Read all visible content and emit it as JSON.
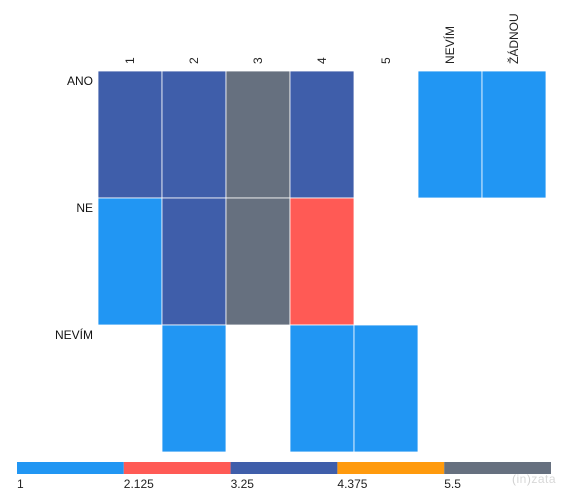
{
  "chart_data": {
    "type": "heatmap",
    "columns": [
      "1",
      "2",
      "3",
      "4",
      "5",
      "NEVÍM",
      "ŽÁDNOU"
    ],
    "rows": [
      "ANO",
      "NE",
      "NEVÍM"
    ],
    "cells": [
      [
        3.25,
        3.25,
        5.5,
        3.25,
        null,
        1,
        1
      ],
      [
        1,
        3.25,
        5.5,
        2.125,
        null,
        null,
        null
      ],
      [
        null,
        1,
        null,
        1,
        1,
        null,
        null
      ]
    ],
    "color_scale": {
      "ticks": [
        "1",
        "2.125",
        "3.25",
        "4.375",
        "5.5"
      ],
      "bands": [
        {
          "from": 1,
          "to": 2.125,
          "color": "#2196f3"
        },
        {
          "from": 2.125,
          "to": 3.25,
          "color": "#ff5a55"
        },
        {
          "from": 3.25,
          "to": 4.375,
          "color": "#3f5eaa"
        },
        {
          "from": 4.375,
          "to": 5.5,
          "color": "#ff9a0d"
        },
        {
          "from": 5.5,
          "to": 6.625,
          "color": "#66707f"
        }
      ]
    }
  },
  "logo": {
    "open": "(",
    "mark": "in",
    "close": ")",
    "brand": "zata"
  }
}
